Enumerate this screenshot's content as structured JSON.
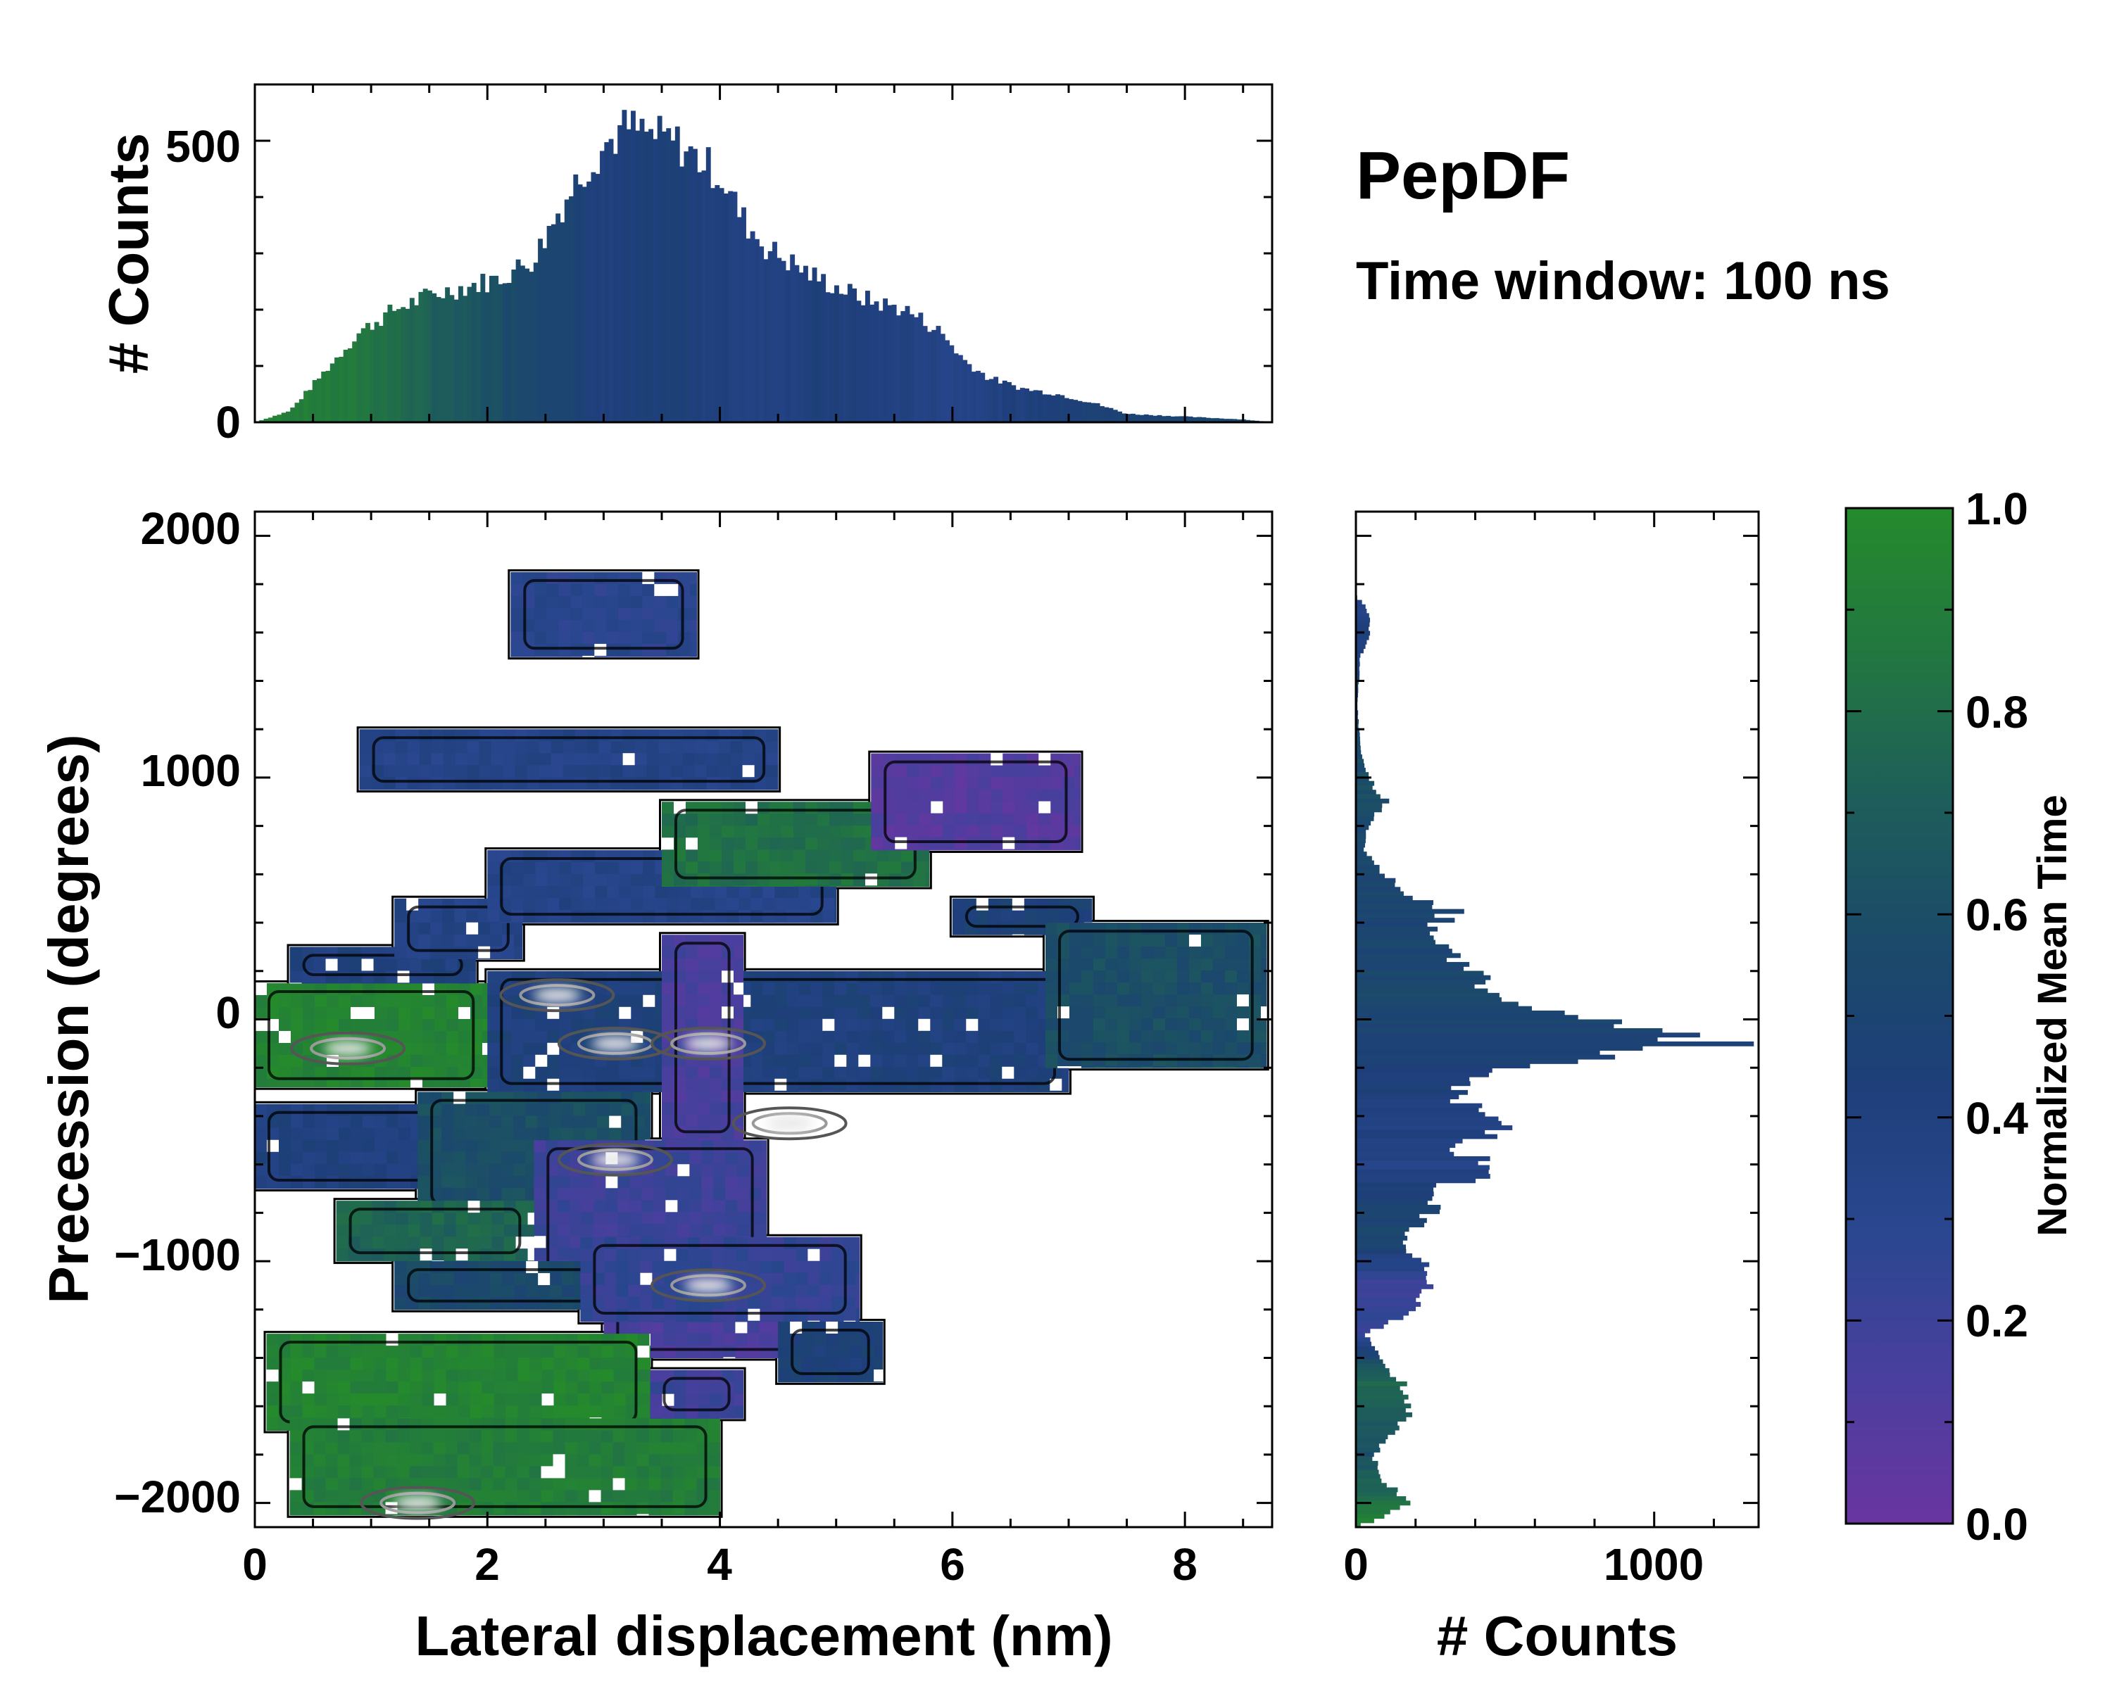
{
  "annotations": {
    "title": "PepDF",
    "subtitle": "Time window: 100 ns"
  },
  "colors": {
    "colormap": [
      "#6a35a0",
      "#4a3f9e",
      "#2a4790",
      "#1e3f7a",
      "#1b4a6a",
      "#1e5e5a",
      "#227740",
      "#258a2c"
    ],
    "contour_outline": "#000000",
    "contour_inner": "#555555",
    "peak": "#e8e8e8"
  },
  "chart_data": [
    {
      "id": "top-histogram",
      "type": "bar",
      "title": "",
      "xlabel": "",
      "ylabel": "# Counts",
      "xlim": [
        0,
        8.75
      ],
      "ylim": [
        0,
        600
      ],
      "yticks": [
        0,
        500
      ],
      "ytick_labels": [
        "0",
        "500"
      ],
      "color_by": "Normalized Mean Time",
      "profile": [
        [
          0.0,
          0
        ],
        [
          0.3,
          20
        ],
        [
          0.6,
          90
        ],
        [
          0.9,
          160
        ],
        [
          1.2,
          200
        ],
        [
          1.5,
          225
        ],
        [
          1.8,
          240
        ],
        [
          2.1,
          255
        ],
        [
          2.4,
          290
        ],
        [
          2.6,
          370
        ],
        [
          2.8,
          440
        ],
        [
          3.0,
          490
        ],
        [
          3.2,
          525
        ],
        [
          3.4,
          510
        ],
        [
          3.6,
          500
        ],
        [
          3.8,
          470
        ],
        [
          4.0,
          440
        ],
        [
          4.2,
          360
        ],
        [
          4.4,
          310
        ],
        [
          4.6,
          285
        ],
        [
          4.8,
          260
        ],
        [
          5.0,
          240
        ],
        [
          5.3,
          215
        ],
        [
          5.6,
          200
        ],
        [
          5.9,
          160
        ],
        [
          6.1,
          110
        ],
        [
          6.3,
          80
        ],
        [
          6.6,
          60
        ],
        [
          6.9,
          50
        ],
        [
          7.2,
          35
        ],
        [
          7.5,
          15
        ],
        [
          8.0,
          10
        ],
        [
          8.5,
          5
        ],
        [
          8.75,
          0
        ]
      ],
      "color_profile": [
        [
          0.0,
          0.95
        ],
        [
          1.0,
          0.85
        ],
        [
          1.6,
          0.7
        ],
        [
          2.2,
          0.58
        ],
        [
          2.6,
          0.52
        ],
        [
          3.0,
          0.4
        ],
        [
          3.6,
          0.45
        ],
        [
          4.2,
          0.38
        ],
        [
          5.0,
          0.42
        ],
        [
          6.0,
          0.35
        ],
        [
          7.0,
          0.45
        ],
        [
          8.75,
          0.55
        ]
      ]
    },
    {
      "id": "main-heatmap",
      "type": "heatmap",
      "title": "",
      "xlabel": "Lateral displacement (nm)",
      "ylabel": "Precession (degrees)",
      "xlim": [
        0,
        8.75
      ],
      "ylim": [
        -2100,
        2100
      ],
      "xticks": [
        0,
        2,
        4,
        6,
        8
      ],
      "xtick_labels": [
        "0",
        "2",
        "4",
        "6",
        "8"
      ],
      "yticks": [
        2000,
        1000,
        0,
        -1000,
        -2000
      ],
      "ytick_labels": [
        "2000",
        "1000",
        "0",
        "−1000",
        "−2000"
      ],
      "colorbar_label": "Normalized Mean Time",
      "regions": [
        {
          "x": [
            0.0,
            2.0
          ],
          "y": [
            -280,
            150
          ],
          "value": 0.95
        },
        {
          "x": [
            0.3,
            1.9
          ],
          "y": [
            150,
            300
          ],
          "value": 0.4
        },
        {
          "x": [
            1.2,
            2.3
          ],
          "y": [
            250,
            500
          ],
          "value": 0.35
        },
        {
          "x": [
            2.0,
            7.0
          ],
          "y": [
            -300,
            200
          ],
          "value": 0.42
        },
        {
          "x": [
            3.5,
            4.2
          ],
          "y": [
            -500,
            350
          ],
          "value": 0.15
        },
        {
          "x": [
            2.0,
            5.0
          ],
          "y": [
            400,
            700
          ],
          "value": 0.35
        },
        {
          "x": [
            3.5,
            5.8
          ],
          "y": [
            550,
            900
          ],
          "value": 0.82
        },
        {
          "x": [
            5.3,
            7.1
          ],
          "y": [
            700,
            1100
          ],
          "value": 0.1
        },
        {
          "x": [
            6.0,
            7.2
          ],
          "y": [
            350,
            500
          ],
          "value": 0.45
        },
        {
          "x": [
            6.8,
            8.7
          ],
          "y": [
            -200,
            400
          ],
          "value": 0.6
        },
        {
          "x": [
            0.9,
            4.5
          ],
          "y": [
            950,
            1200
          ],
          "value": 0.35
        },
        {
          "x": [
            2.2,
            3.8
          ],
          "y": [
            1500,
            1850
          ],
          "value": 0.3
        },
        {
          "x": [
            0.0,
            1.6
          ],
          "y": [
            -700,
            -350
          ],
          "value": 0.4
        },
        {
          "x": [
            1.4,
            3.4
          ],
          "y": [
            -800,
            -300
          ],
          "value": 0.6
        },
        {
          "x": [
            2.4,
            4.4
          ],
          "y": [
            -1100,
            -500
          ],
          "value": 0.2
        },
        {
          "x": [
            0.7,
            2.4
          ],
          "y": [
            -1000,
            -750
          ],
          "value": 0.75
        },
        {
          "x": [
            1.2,
            3.5
          ],
          "y": [
            -1200,
            -1000
          ],
          "value": 0.55
        },
        {
          "x": [
            3.0,
            5.0
          ],
          "y": [
            -1400,
            -1100
          ],
          "value": 0.15
        },
        {
          "x": [
            2.8,
            5.2
          ],
          "y": [
            -1250,
            -900
          ],
          "value": 0.25
        },
        {
          "x": [
            4.5,
            5.4
          ],
          "y": [
            -1500,
            -1250
          ],
          "value": 0.45
        },
        {
          "x": [
            0.1,
            3.4
          ],
          "y": [
            -1700,
            -1300
          ],
          "value": 0.95
        },
        {
          "x": [
            0.3,
            4.0
          ],
          "y": [
            -2050,
            -1650
          ],
          "value": 0.9
        },
        {
          "x": [
            3.4,
            4.2
          ],
          "y": [
            -1650,
            -1450
          ],
          "value": 0.2
        }
      ],
      "hotspots": [
        {
          "x": 0.8,
          "y": -120
        },
        {
          "x": 3.1,
          "y": -100
        },
        {
          "x": 3.9,
          "y": -100
        },
        {
          "x": 4.6,
          "y": -430
        },
        {
          "x": 3.1,
          "y": -580
        },
        {
          "x": 3.9,
          "y": -1100
        },
        {
          "x": 2.6,
          "y": 100
        },
        {
          "x": 1.4,
          "y": -2000
        }
      ]
    },
    {
      "id": "side-histogram",
      "type": "bar",
      "orientation": "horizontal",
      "title": "",
      "xlabel": "# Counts",
      "ylabel": "",
      "xlim": [
        0,
        1350
      ],
      "ylim": [
        -2100,
        2100
      ],
      "xticks": [
        0,
        1000
      ],
      "xtick_labels": [
        "0",
        "1000"
      ],
      "color_by": "Normalized Mean Time",
      "profile": [
        [
          1750,
          0
        ],
        [
          1700,
          40
        ],
        [
          1600,
          50
        ],
        [
          1500,
          15
        ],
        [
          1300,
          5
        ],
        [
          1200,
          10
        ],
        [
          1100,
          20
        ],
        [
          1000,
          40
        ],
        [
          900,
          100
        ],
        [
          800,
          40
        ],
        [
          700,
          30
        ],
        [
          600,
          100
        ],
        [
          500,
          200
        ],
        [
          450,
          330
        ],
        [
          400,
          280
        ],
        [
          300,
          300
        ],
        [
          200,
          380
        ],
        [
          100,
          500
        ],
        [
          50,
          600
        ],
        [
          0,
          800
        ],
        [
          -50,
          950
        ],
        [
          -100,
          1200
        ],
        [
          -150,
          800
        ],
        [
          -200,
          500
        ],
        [
          -300,
          350
        ],
        [
          -400,
          400
        ],
        [
          -450,
          500
        ],
        [
          -500,
          420
        ],
        [
          -550,
          350
        ],
        [
          -600,
          500
        ],
        [
          -700,
          280
        ],
        [
          -800,
          250
        ],
        [
          -900,
          150
        ],
        [
          -1000,
          220
        ],
        [
          -1100,
          250
        ],
        [
          -1200,
          200
        ],
        [
          -1300,
          30
        ],
        [
          -1400,
          90
        ],
        [
          -1500,
          150
        ],
        [
          -1600,
          200
        ],
        [
          -1700,
          120
        ],
        [
          -1800,
          60
        ],
        [
          -1900,
          80
        ],
        [
          -2000,
          200
        ],
        [
          -2050,
          100
        ],
        [
          -2100,
          0
        ]
      ],
      "color_profile": [
        [
          1800,
          0.35
        ],
        [
          1000,
          0.6
        ],
        [
          700,
          0.55
        ],
        [
          400,
          0.5
        ],
        [
          100,
          0.55
        ],
        [
          -150,
          0.45
        ],
        [
          -600,
          0.35
        ],
        [
          -900,
          0.55
        ],
        [
          -1100,
          0.2
        ],
        [
          -1300,
          0.25
        ],
        [
          -1500,
          0.8
        ],
        [
          -1800,
          0.6
        ],
        [
          -2100,
          0.95
        ]
      ]
    },
    {
      "id": "colorbar",
      "type": "colorbar",
      "label": "Normalized Mean Time",
      "range": [
        0,
        1
      ],
      "ticks": [
        "0.0",
        "0.2",
        "0.4",
        "0.6",
        "0.8",
        "1.0"
      ]
    }
  ]
}
